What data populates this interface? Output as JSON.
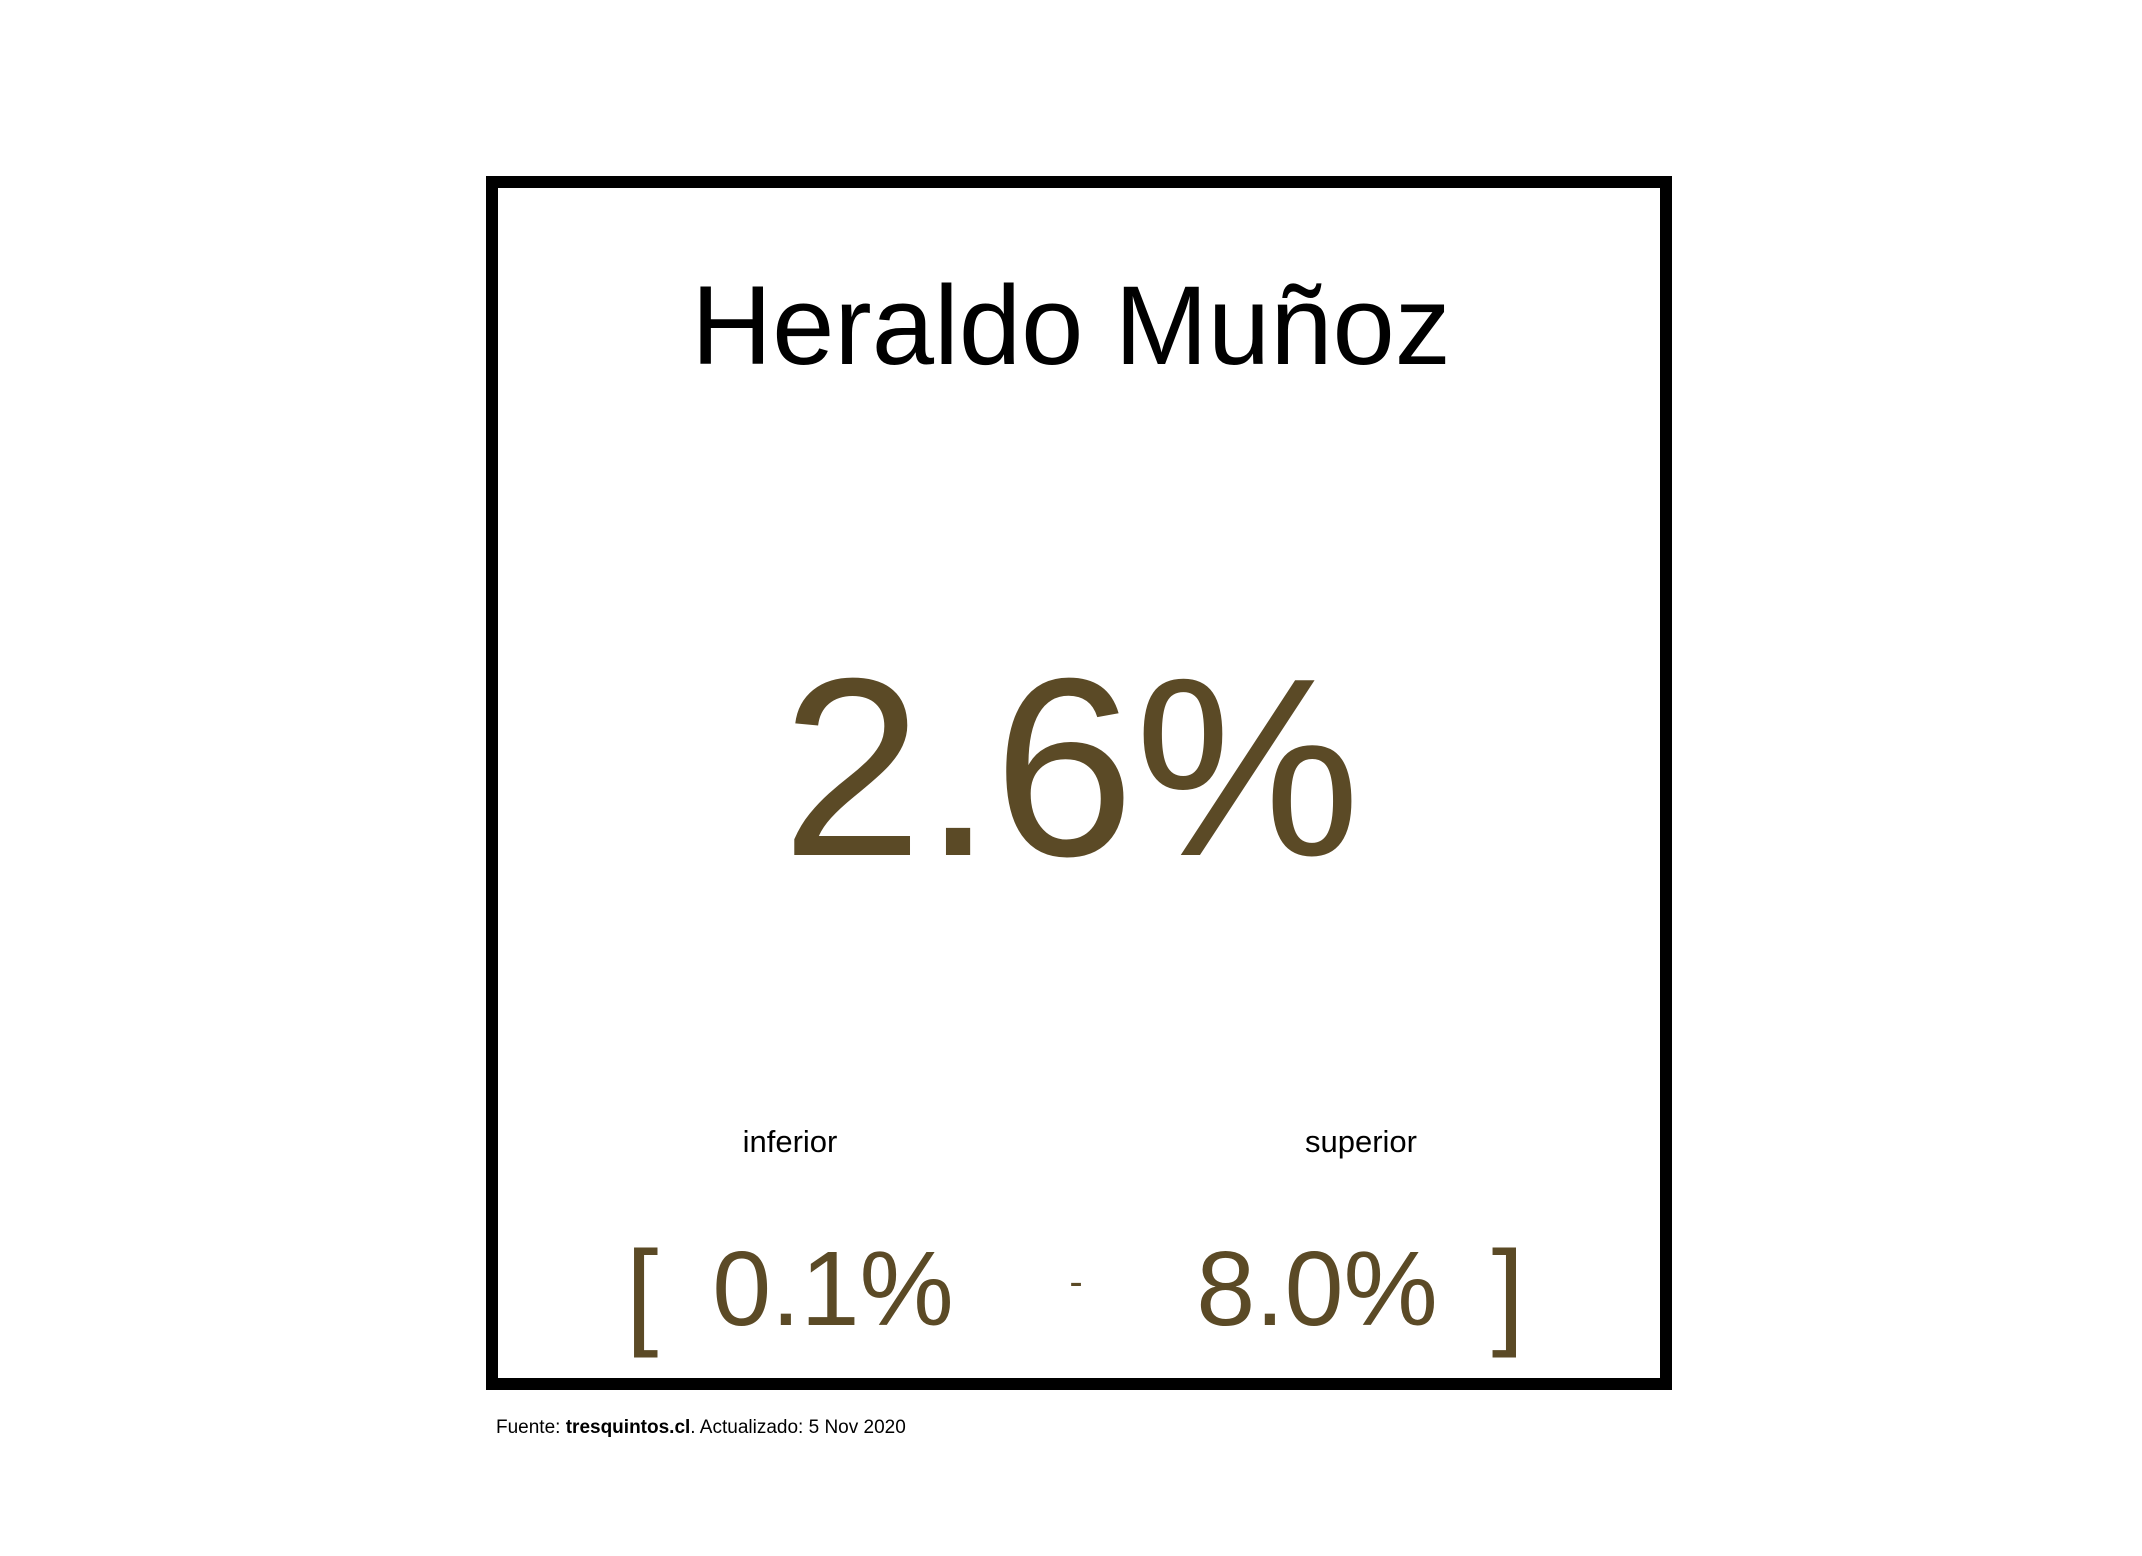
{
  "colors": {
    "accent": "#5b4a26",
    "text": "#000000",
    "border": "#000000",
    "background": "#ffffff"
  },
  "chart_data": {
    "type": "table",
    "title": "Heraldo Muñoz",
    "estimate": 2.6,
    "estimate_label": "2.6%",
    "interval": {
      "lower": 0.1,
      "upper": 8.0,
      "lower_title": "inferior",
      "upper_title": "superior",
      "lower_label": "0.1%",
      "upper_label": "8.0%",
      "open_bracket": "[",
      "separator": "-",
      "close_bracket": "]"
    }
  },
  "footer": {
    "prefix": "Fuente: ",
    "source_name": "tresquintos.cl",
    "suffix": ". Actualizado: 5 Nov 2020"
  }
}
